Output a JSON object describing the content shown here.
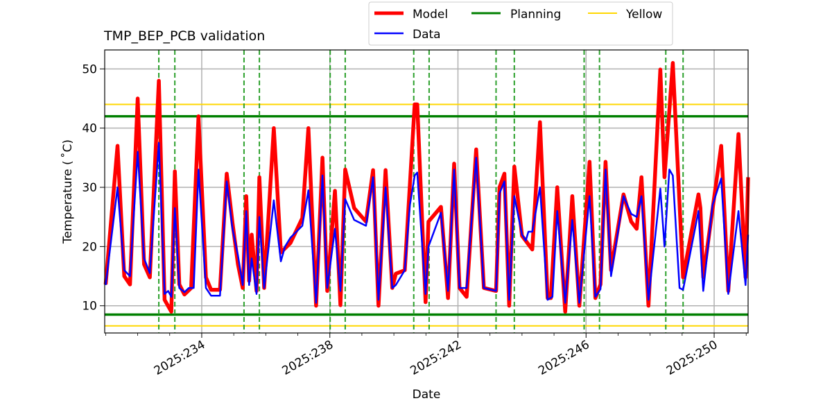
{
  "chart_data": {
    "type": "line",
    "title": "TMP_BEP_PCB validation",
    "xlabel": "Date",
    "ylabel": "Temperature ($^\\circ$C)",
    "ylabel_display": "Temperature ( ˚C)",
    "xlim": [
      230.97,
      251.06
    ],
    "ylim": [
      5.4,
      53.2
    ],
    "grid": true,
    "legend_placement": "top-center-outside",
    "x_ticks": [
      234,
      238,
      242,
      246,
      250
    ],
    "x_tick_labels": [
      "2025:234",
      "2025:238",
      "2025:242",
      "2025:246",
      "2025:250"
    ],
    "x_minor_ticks": [
      231,
      232,
      233,
      235,
      236,
      237,
      239,
      240,
      241,
      243,
      244,
      245,
      247,
      248,
      249,
      251
    ],
    "y_ticks": [
      10,
      20,
      30,
      40,
      50
    ],
    "y_tick_labels": [
      "10",
      "20",
      "30",
      "40",
      "50"
    ],
    "colors": {
      "model": "#ff0000",
      "data": "#0000ff",
      "planning": "#008000",
      "planning_dashed": "#2ca02c",
      "yellow": "#ffd700",
      "grid": "#b0b0b0"
    },
    "legend": [
      {
        "label": "Model",
        "series": "model"
      },
      {
        "label": "Planning",
        "series": "planning"
      },
      {
        "label": "Yellow",
        "series": "yellow"
      },
      {
        "label": "Data",
        "series": "data"
      }
    ],
    "planning_limits": [
      42,
      8.5
    ],
    "yellow_limits": [
      44,
      6.6
    ],
    "planning_vertical_days": [
      232.66,
      233.16,
      235.32,
      235.8,
      238.01,
      238.48,
      240.62,
      241.1,
      243.19,
      243.76,
      245.94,
      246.42,
      248.49,
      249.03
    ],
    "series": [
      {
        "name": "Model",
        "points": [
          [
            231.0,
            13.6
          ],
          [
            231.37,
            37
          ],
          [
            231.58,
            15
          ],
          [
            231.76,
            13.6
          ],
          [
            232.0,
            45
          ],
          [
            232.2,
            17
          ],
          [
            232.38,
            14.8
          ],
          [
            232.66,
            48
          ],
          [
            232.84,
            11
          ],
          [
            233.05,
            9
          ],
          [
            233.16,
            32.7
          ],
          [
            233.3,
            13.6
          ],
          [
            233.46,
            11.9
          ],
          [
            233.67,
            13
          ],
          [
            233.9,
            42
          ],
          [
            234.13,
            14.8
          ],
          [
            234.29,
            12.7
          ],
          [
            234.57,
            12.7
          ],
          [
            234.78,
            32.3
          ],
          [
            234.96,
            24
          ],
          [
            235.13,
            17
          ],
          [
            235.28,
            13
          ],
          [
            235.39,
            28.5
          ],
          [
            235.48,
            14.2
          ],
          [
            235.56,
            22
          ],
          [
            235.71,
            12.5
          ],
          [
            235.8,
            31.7
          ],
          [
            235.95,
            13
          ],
          [
            236.25,
            40
          ],
          [
            236.47,
            19
          ],
          [
            236.77,
            20.6
          ],
          [
            237.14,
            24.8
          ],
          [
            237.33,
            40
          ],
          [
            237.57,
            10
          ],
          [
            237.77,
            35
          ],
          [
            237.92,
            12.5
          ],
          [
            238.16,
            29.4
          ],
          [
            238.33,
            10.1
          ],
          [
            238.48,
            33
          ],
          [
            238.76,
            26.5
          ],
          [
            239.13,
            24.2
          ],
          [
            239.35,
            32.9
          ],
          [
            239.52,
            10
          ],
          [
            239.74,
            32.9
          ],
          [
            239.95,
            13
          ],
          [
            240.06,
            15.4
          ],
          [
            240.34,
            16
          ],
          [
            240.65,
            44
          ],
          [
            240.73,
            44
          ],
          [
            240.99,
            10.6
          ],
          [
            241.08,
            24.2
          ],
          [
            241.47,
            26.7
          ],
          [
            241.69,
            11.3
          ],
          [
            241.88,
            34
          ],
          [
            242.05,
            13
          ],
          [
            242.27,
            11.5
          ],
          [
            242.57,
            36.4
          ],
          [
            242.81,
            13
          ],
          [
            243.19,
            12.5
          ],
          [
            243.3,
            30
          ],
          [
            243.45,
            32.3
          ],
          [
            243.6,
            10
          ],
          [
            243.76,
            33.5
          ],
          [
            244.0,
            21.8
          ],
          [
            244.32,
            19.5
          ],
          [
            244.56,
            41
          ],
          [
            244.8,
            11.3
          ],
          [
            244.9,
            11.3
          ],
          [
            245.1,
            30
          ],
          [
            245.35,
            9
          ],
          [
            245.57,
            28.5
          ],
          [
            245.79,
            10
          ],
          [
            246.11,
            34.3
          ],
          [
            246.29,
            11.3
          ],
          [
            246.45,
            13.6
          ],
          [
            246.61,
            34.3
          ],
          [
            246.78,
            16
          ],
          [
            247.17,
            28.8
          ],
          [
            247.41,
            24.2
          ],
          [
            247.58,
            23
          ],
          [
            247.73,
            31.7
          ],
          [
            247.95,
            10
          ],
          [
            248.32,
            49.9
          ],
          [
            248.45,
            31.7
          ],
          [
            248.71,
            51
          ],
          [
            249.03,
            14.8
          ],
          [
            249.51,
            28.8
          ],
          [
            249.57,
            26.5
          ],
          [
            249.66,
            14.8
          ],
          [
            250.22,
            37
          ],
          [
            250.44,
            12.5
          ],
          [
            250.76,
            39
          ],
          [
            250.98,
            14.8
          ],
          [
            251.06,
            31.7
          ]
        ]
      },
      {
        "name": "Data",
        "points": [
          [
            231.0,
            13.5
          ],
          [
            231.37,
            30
          ],
          [
            231.58,
            16
          ],
          [
            231.76,
            15
          ],
          [
            232.0,
            36
          ],
          [
            232.2,
            18
          ],
          [
            232.38,
            15.5
          ],
          [
            232.66,
            37.5
          ],
          [
            232.84,
            12
          ],
          [
            232.95,
            12.5
          ],
          [
            233.05,
            11.5
          ],
          [
            233.16,
            26.5
          ],
          [
            233.3,
            13
          ],
          [
            233.46,
            12.3
          ],
          [
            233.6,
            13
          ],
          [
            233.75,
            13
          ],
          [
            233.9,
            33
          ],
          [
            234.13,
            13
          ],
          [
            234.29,
            11.7
          ],
          [
            234.57,
            11.7
          ],
          [
            234.78,
            31
          ],
          [
            234.96,
            23
          ],
          [
            235.13,
            18.5
          ],
          [
            235.28,
            13.5
          ],
          [
            235.39,
            26
          ],
          [
            235.48,
            13.5
          ],
          [
            235.56,
            18
          ],
          [
            235.71,
            12
          ],
          [
            235.8,
            25
          ],
          [
            235.95,
            13
          ],
          [
            236.25,
            27.8
          ],
          [
            236.47,
            17.5
          ],
          [
            236.6,
            20
          ],
          [
            236.77,
            21.5
          ],
          [
            237.14,
            23.5
          ],
          [
            237.33,
            29.5
          ],
          [
            237.57,
            10.5
          ],
          [
            237.77,
            32
          ],
          [
            237.92,
            13
          ],
          [
            238.16,
            23
          ],
          [
            238.33,
            12.5
          ],
          [
            238.48,
            28
          ],
          [
            238.76,
            24.5
          ],
          [
            239.13,
            23.5
          ],
          [
            239.35,
            31.7
          ],
          [
            239.52,
            11
          ],
          [
            239.74,
            30
          ],
          [
            239.95,
            13
          ],
          [
            240.06,
            13.5
          ],
          [
            240.34,
            16
          ],
          [
            240.5,
            27
          ],
          [
            240.65,
            32
          ],
          [
            240.73,
            32.5
          ],
          [
            240.99,
            12
          ],
          [
            241.08,
            20
          ],
          [
            241.47,
            25.7
          ],
          [
            241.69,
            12.5
          ],
          [
            241.88,
            33
          ],
          [
            242.05,
            13
          ],
          [
            242.27,
            13
          ],
          [
            242.57,
            35
          ],
          [
            242.81,
            13
          ],
          [
            243.19,
            12.5
          ],
          [
            243.3,
            29
          ],
          [
            243.45,
            31
          ],
          [
            243.6,
            11
          ],
          [
            243.76,
            28.5
          ],
          [
            244.0,
            22
          ],
          [
            244.12,
            21
          ],
          [
            244.2,
            22.5
          ],
          [
            244.32,
            22.5
          ],
          [
            244.56,
            30
          ],
          [
            244.8,
            11
          ],
          [
            244.95,
            11.5
          ],
          [
            245.1,
            26
          ],
          [
            245.35,
            10.5
          ],
          [
            245.57,
            24.5
          ],
          [
            245.79,
            10.5
          ],
          [
            246.11,
            28.5
          ],
          [
            246.29,
            11.5
          ],
          [
            246.45,
            12.8
          ],
          [
            246.61,
            33
          ],
          [
            246.78,
            15
          ],
          [
            247.17,
            28.5
          ],
          [
            247.41,
            25.5
          ],
          [
            247.58,
            25
          ],
          [
            247.73,
            28.5
          ],
          [
            247.95,
            11
          ],
          [
            248.32,
            29.8
          ],
          [
            248.45,
            20
          ],
          [
            248.6,
            33
          ],
          [
            248.71,
            32
          ],
          [
            248.92,
            13
          ],
          [
            249.03,
            12.7
          ],
          [
            249.51,
            26
          ],
          [
            249.66,
            12.5
          ],
          [
            249.95,
            27
          ],
          [
            250.22,
            31.5
          ],
          [
            250.44,
            12
          ],
          [
            250.76,
            26
          ],
          [
            250.98,
            13.5
          ],
          [
            251.06,
            22
          ]
        ]
      }
    ]
  }
}
